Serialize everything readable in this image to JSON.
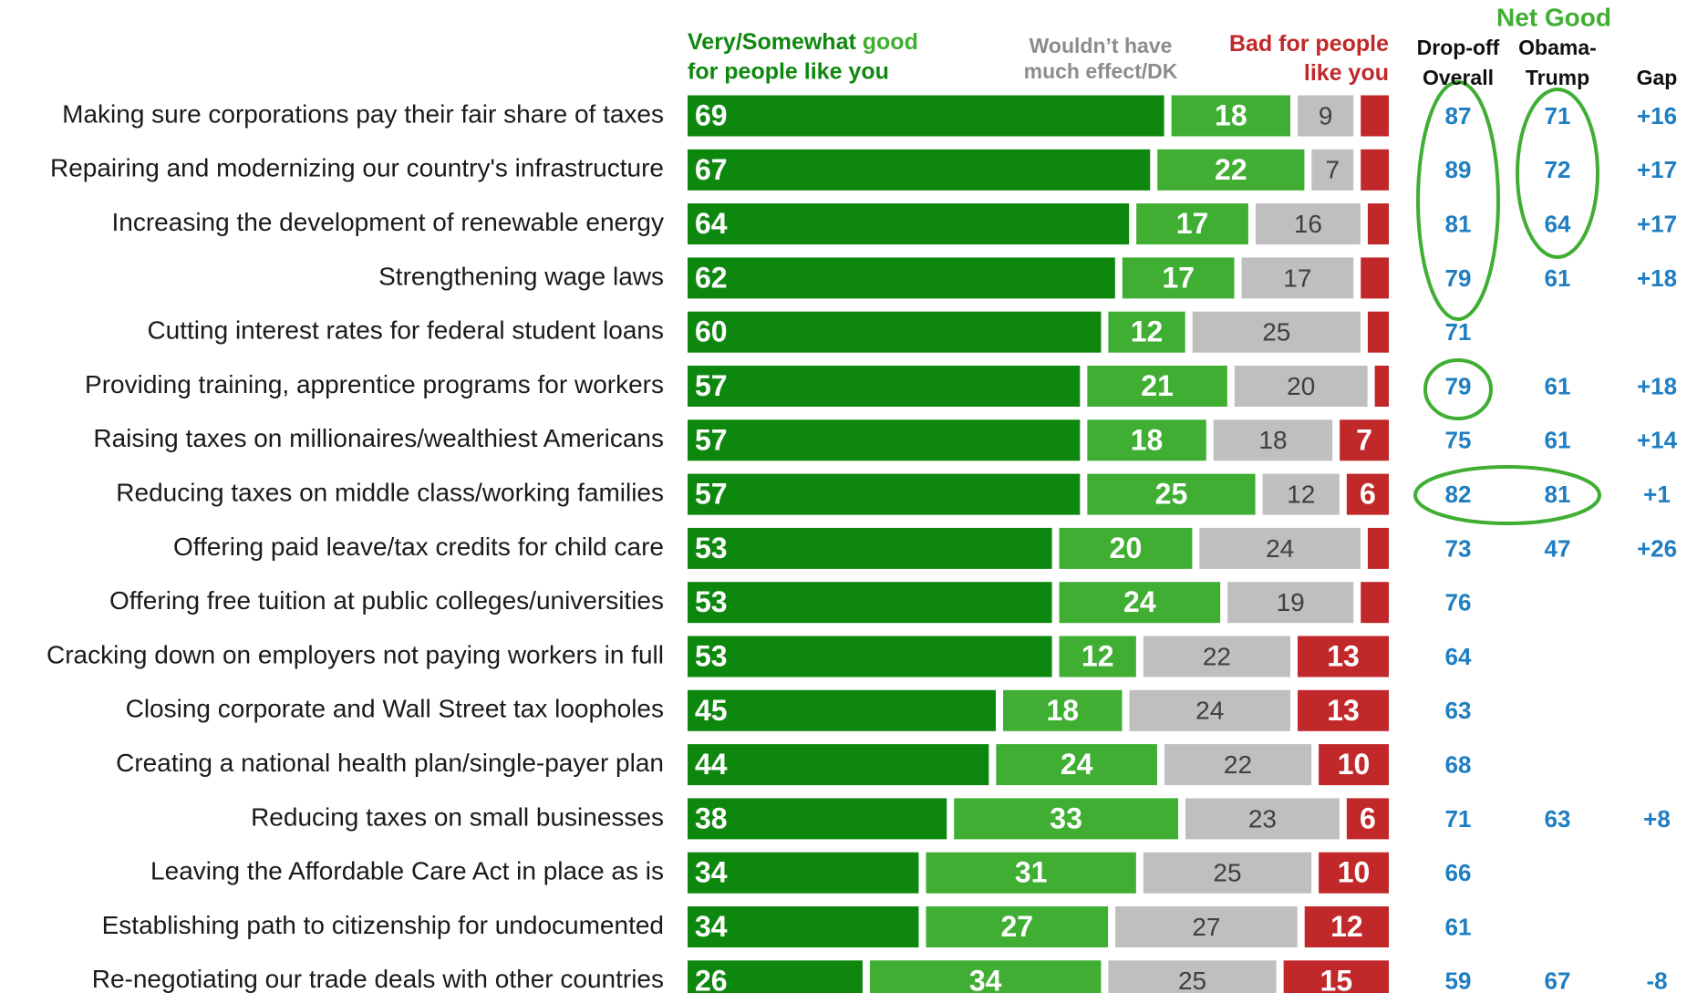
{
  "chart_data": {
    "type": "stacked_bar_horizontal",
    "categories": [
      "Making sure corporations pay their fair share of taxes",
      "Repairing and modernizing our country's infrastructure",
      "Increasing the development of renewable energy",
      "Strengthening wage laws",
      "Cutting interest rates for federal student loans",
      "Providing training, apprentice programs for workers",
      "Raising taxes on millionaires/wealthiest Americans",
      "Reducing taxes on middle class/working families",
      "Offering paid leave/tax credits for child care",
      "Offering free tuition at public colleges/universities",
      "Cracking down on employers not paying workers in full",
      "Closing corporate and Wall Street tax loopholes",
      "Creating a national health plan/single-payer plan",
      "Reducing taxes on small businesses",
      "Leaving the Affordable Care Act in place as is",
      "Establishing path to citizenship for undocumented",
      "Re-negotiating our trade deals with other countries"
    ],
    "xlim": [
      0,
      100
    ],
    "good_header_suffix": "for people like you",
    "series": [
      {
        "name": "Very/Somewhat",
        "color": "#0e870e",
        "label_color": "#ffffff",
        "values": [
          69,
          67,
          64,
          62,
          60,
          57,
          57,
          57,
          53,
          53,
          53,
          45,
          44,
          38,
          34,
          34,
          26
        ]
      },
      {
        "name": "good",
        "color": "#3fae32",
        "label_color": "#ffffff",
        "values": [
          18,
          22,
          17,
          17,
          12,
          21,
          18,
          25,
          20,
          24,
          12,
          18,
          24,
          33,
          31,
          27,
          34
        ]
      },
      {
        "name": "Wouldn’t have much effect/DK",
        "color": "#bfbfbf",
        "label_color": "#404040",
        "values": [
          9,
          7,
          16,
          17,
          25,
          20,
          18,
          12,
          24,
          19,
          22,
          24,
          22,
          23,
          25,
          27,
          25
        ]
      },
      {
        "name": "Bad for people like you",
        "color": "#c0282a",
        "label_color": "#ffffff",
        "values": [
          4,
          4,
          3,
          4,
          3,
          2,
          7,
          6,
          3,
          4,
          13,
          13,
          10,
          6,
          10,
          12,
          15
        ],
        "value_labels": [
          null,
          null,
          null,
          null,
          null,
          null,
          "7",
          "6",
          null,
          null,
          "13",
          "13",
          "10",
          "6",
          "10",
          "12",
          "15"
        ]
      }
    ],
    "table": {
      "header": "Net Good",
      "columns": [
        [
          "Drop-off",
          "Overall"
        ],
        [
          "Obama-",
          "Trump"
        ],
        [
          "Gap"
        ]
      ],
      "overall": [
        87,
        89,
        81,
        79,
        71,
        79,
        75,
        82,
        73,
        76,
        64,
        63,
        68,
        71,
        66,
        61,
        59
      ],
      "obama_trump": [
        71,
        72,
        64,
        61,
        null,
        61,
        61,
        81,
        47,
        null,
        null,
        null,
        null,
        63,
        null,
        null,
        67
      ],
      "gap": [
        16,
        17,
        17,
        18,
        null,
        18,
        14,
        1,
        26,
        null,
        null,
        null,
        null,
        8,
        null,
        null,
        -8
      ],
      "gap_labels": [
        "+16",
        "+17",
        "+17",
        "+18",
        null,
        "+18",
        "+14",
        "+1",
        "+26",
        null,
        null,
        null,
        null,
        "+8",
        null,
        null,
        "-8"
      ]
    }
  }
}
